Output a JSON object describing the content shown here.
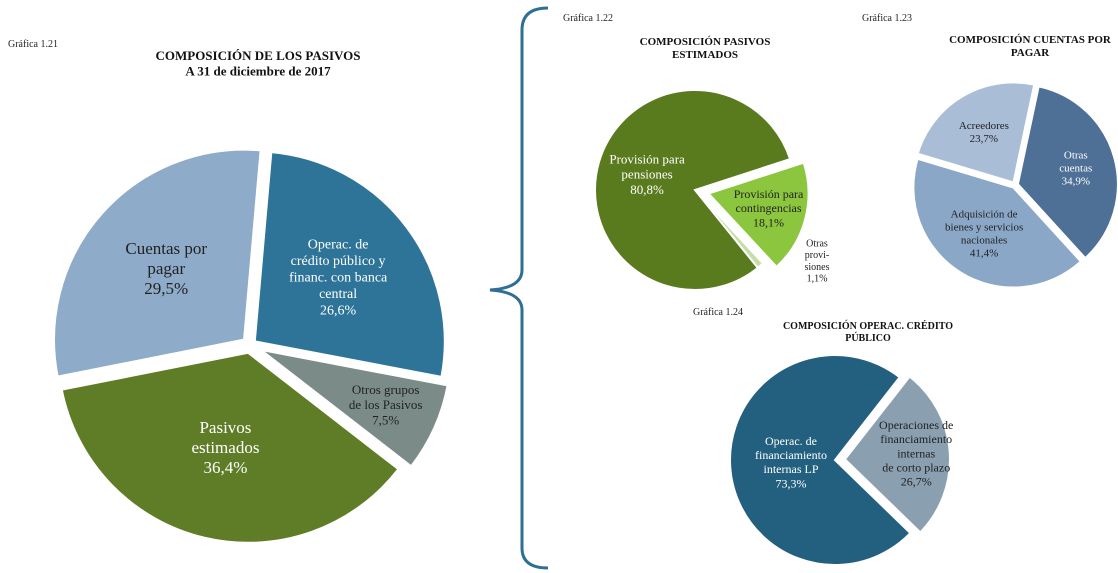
{
  "chart_data": [
    {
      "type": "pie",
      "label": "Gráfica 1.21",
      "title": "COMPOSICIÓN DE LOS PASIVOS\nA 31 de diciembre de 2017",
      "categories": [
        "Operac. de\ncrédito público y\nfinanc. con banca\ncentral",
        "Otros grupos\nde los Pasivos",
        "Pasivos\nestimados",
        "Cuentas por\npagar"
      ],
      "values": [
        26.6,
        7.5,
        36.4,
        29.5
      ],
      "value_labels": [
        "26,6%",
        "7,5%",
        "36,4%",
        "29,5%"
      ],
      "colors": [
        "#2e7499",
        "#7b8c88",
        "#5e7d26",
        "#8eabc9"
      ]
    },
    {
      "type": "pie",
      "label": "Gráfica 1.22",
      "title": "COMPOSICIÓN PASIVOS\nESTIMADOS",
      "categories": [
        "Provisión para\ncontingencias",
        "Otras\nprovi-\nsiones",
        "Provisión para\npensiones"
      ],
      "values": [
        18.1,
        1.1,
        80.8
      ],
      "value_labels": [
        "18,1%",
        "1,1%",
        "80,8%"
      ],
      "colors": [
        "#8cc63e",
        "#c8dca8",
        "#5a7a1e"
      ]
    },
    {
      "type": "pie",
      "label": "Gráfica 1.23",
      "title": "COMPOSICIÓN CUENTAS POR\nPAGAR",
      "categories": [
        "Otras\ncuentas",
        "Adquisición de\nbienes y servicios\nnacionales",
        "Acreedores"
      ],
      "values": [
        34.9,
        41.4,
        23.7
      ],
      "value_labels": [
        "34,9%",
        "41,4%",
        "23,7%"
      ],
      "colors": [
        "#4e6f96",
        "#8aa7c8",
        "#a9bdd6"
      ]
    },
    {
      "type": "pie",
      "label": "Gráfica 1.24",
      "title": "COMPOSICIÓN OPERAC. CRÉDITO\nPÚBLICO",
      "categories": [
        "Operaciones de\nfinanciamiento\ninternas\nde corto plazo",
        "Operac. de\nfinanciamiento\ninternas LP"
      ],
      "values": [
        26.7,
        73.3
      ],
      "value_labels": [
        "26,7%",
        "73,3%"
      ],
      "colors": [
        "#8aa0b0",
        "#23607f"
      ]
    }
  ]
}
